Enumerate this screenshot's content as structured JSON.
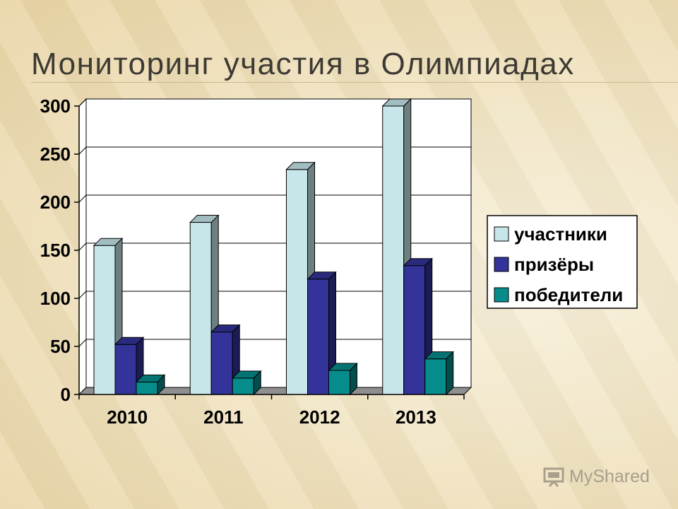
{
  "slide": {
    "title": "Мониторинг участия в Олимпиадах",
    "watermark": "MyShared"
  },
  "colors": {
    "участники": "#c6e6ea",
    "призёры": "#333399",
    "победители": "#078c8c",
    "floor": "#8f8f8f"
  },
  "chart_data": {
    "type": "bar",
    "categories": [
      "2010",
      "2011",
      "2012",
      "2013"
    ],
    "series": [
      {
        "name": "участники",
        "values": [
          155,
          179,
          234,
          300
        ]
      },
      {
        "name": "призёры",
        "values": [
          52,
          65,
          120,
          134
        ]
      },
      {
        "name": "победители",
        "values": [
          13,
          17,
          25,
          37
        ]
      }
    ],
    "ylim": [
      0,
      300
    ],
    "yticks": [
      0,
      50,
      100,
      150,
      200,
      250,
      300
    ],
    "grid": true,
    "legend": "right",
    "three_d": true
  }
}
